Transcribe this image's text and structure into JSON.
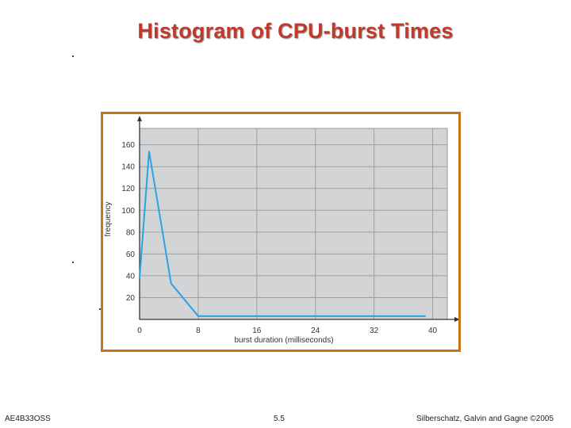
{
  "slide": {
    "title": "Histogram of CPU-burst Times"
  },
  "footer": {
    "course": "AE4B33OSS",
    "page": "5.5",
    "credit": "Silberschatz, Galvin and Gagne ©2005"
  },
  "colors": {
    "title": "#c0392b",
    "frame": "#c8741a",
    "plot_bg": "#d3d4d6",
    "line": "#2aa3e0"
  },
  "chart_data": {
    "type": "line",
    "title": "",
    "xlabel": "burst duration (milliseconds)",
    "ylabel": "frequency",
    "xlim": [
      0,
      42
    ],
    "ylim": [
      0,
      175
    ],
    "xticks": [
      0,
      8,
      16,
      24,
      32,
      40
    ],
    "yticks": [
      20,
      40,
      60,
      80,
      100,
      120,
      140,
      160
    ],
    "grid": true,
    "series": [
      {
        "x": [
          0,
          1.3,
          4.3,
          8,
          39
        ],
        "values": [
          38,
          154,
          33,
          3,
          3
        ]
      }
    ]
  }
}
